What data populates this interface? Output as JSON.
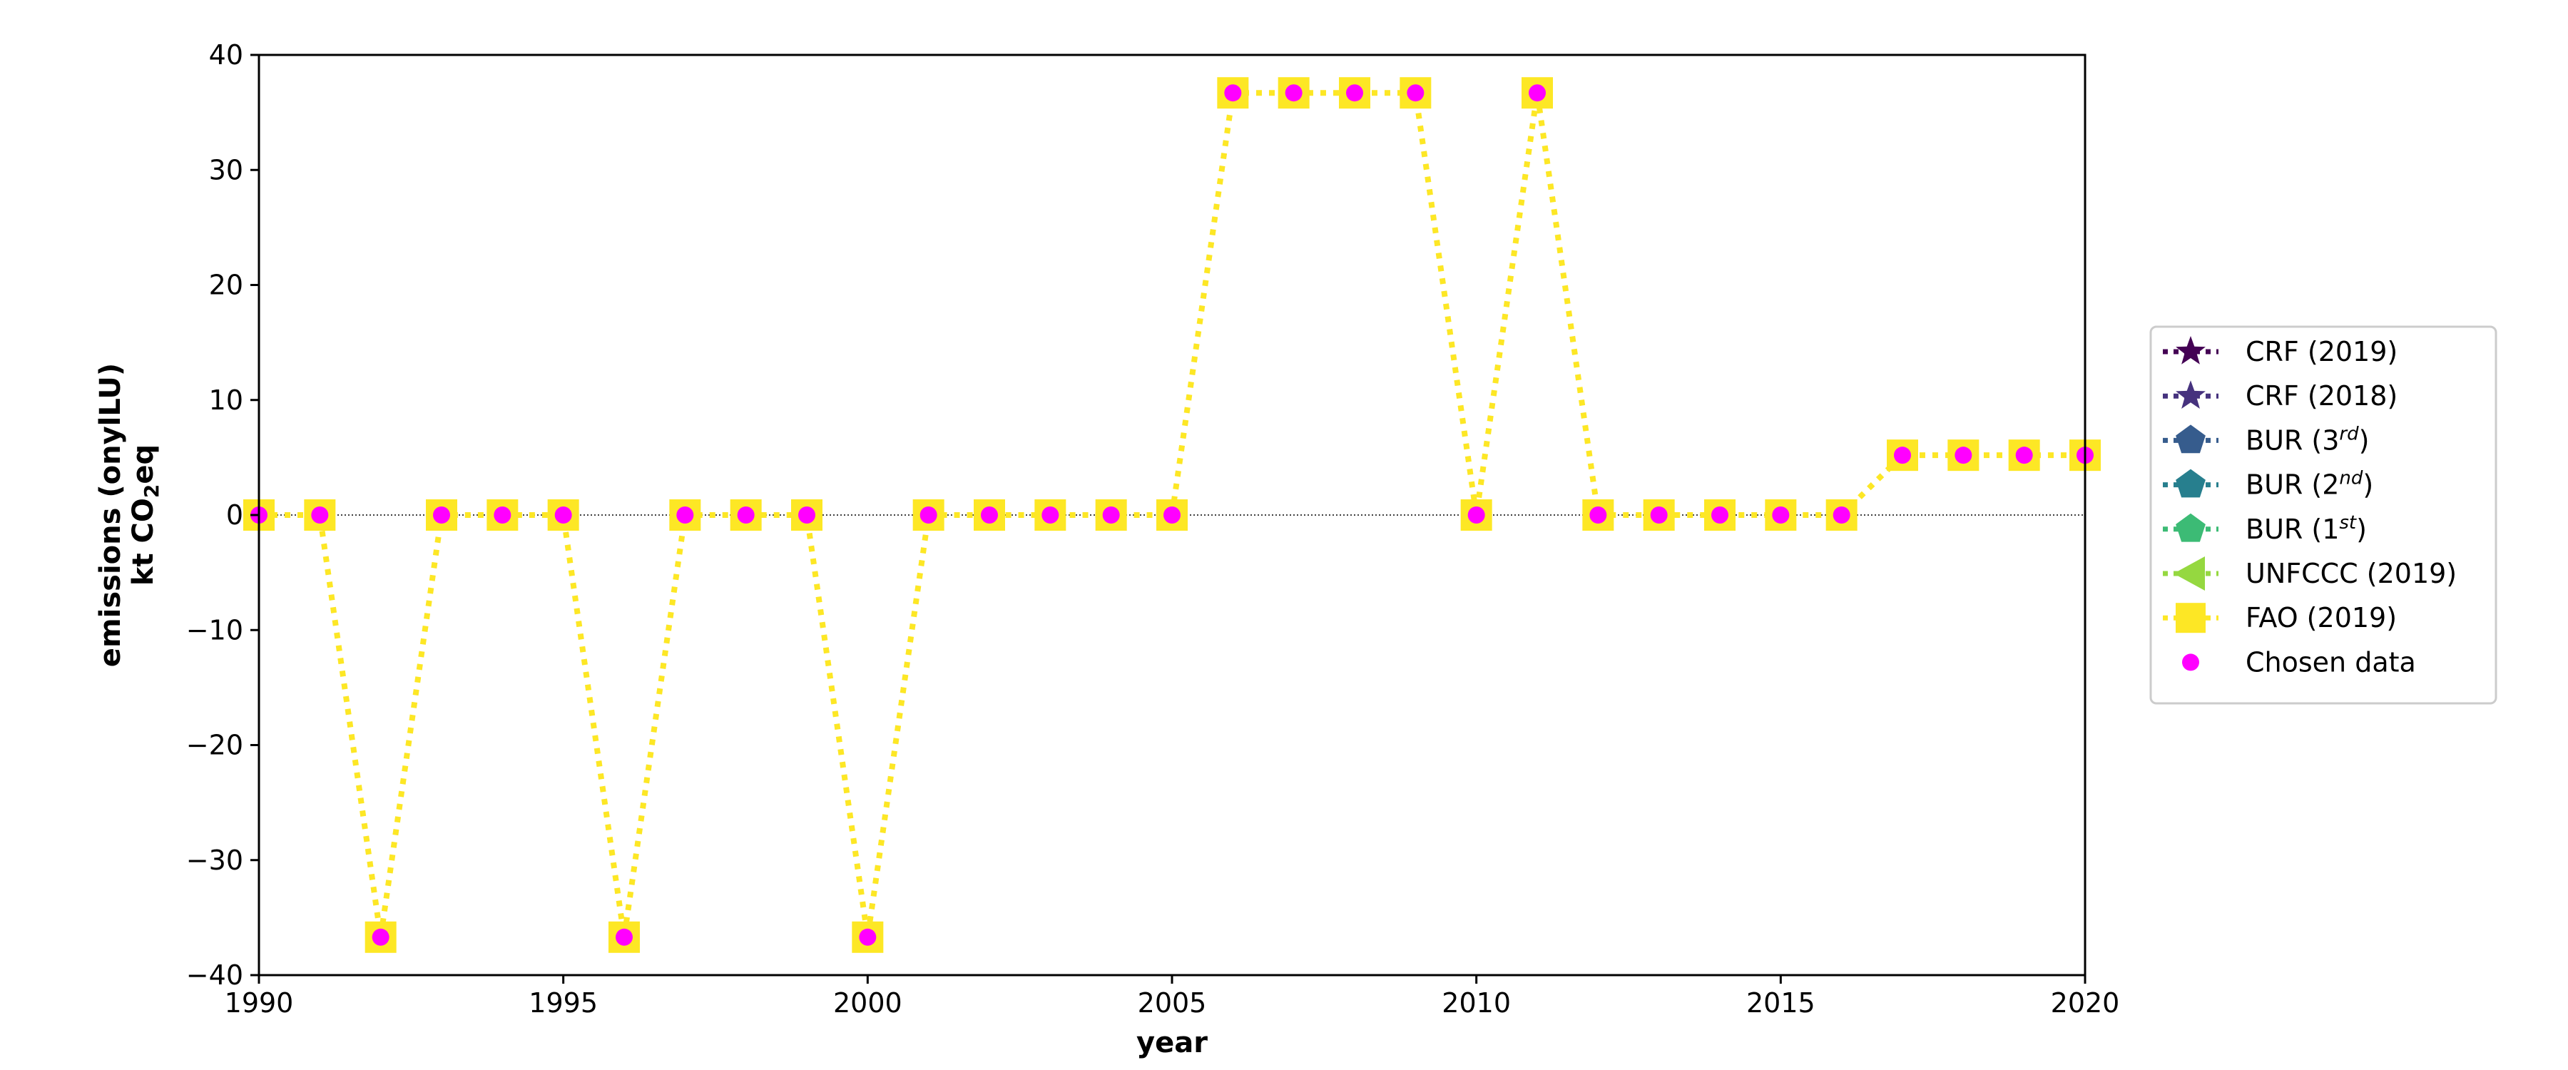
{
  "chart_data": {
    "type": "line",
    "xlabel": "year",
    "ylabel": "emissions (onylLU)",
    "ylabel_units": "kt CO",
    "ylabel_units_sub": "2",
    "ylabel_units_tail": "eq",
    "xlim": [
      1990,
      2020
    ],
    "ylim": [
      -40,
      40
    ],
    "xticks": [
      1990,
      1995,
      2000,
      2005,
      2010,
      2015,
      2020
    ],
    "yticks": [
      -40,
      -30,
      -20,
      -10,
      0,
      10,
      20,
      30,
      40
    ],
    "xtick_labels": [
      "1990",
      "1995",
      "2000",
      "2005",
      "2010",
      "2015",
      "2020"
    ],
    "ytick_labels": [
      "−40",
      "−30",
      "−20",
      "−10",
      "0",
      "10",
      "20",
      "30",
      "40"
    ],
    "legend_position": "right",
    "zero_line": true,
    "legend": [
      {
        "base": "CRF (2019)",
        "sup": "",
        "tail": "",
        "color": "#440154",
        "marker": "star",
        "line": "dotted"
      },
      {
        "base": "CRF (2018)",
        "sup": "",
        "tail": "",
        "color": "#46327e",
        "marker": "star",
        "line": "dotted"
      },
      {
        "base": "BUR (3",
        "sup": "rd",
        "tail": ")",
        "color": "#365c8d",
        "marker": "pentagon",
        "line": "dotted"
      },
      {
        "base": "BUR (2",
        "sup": "nd",
        "tail": ")",
        "color": "#277f8e",
        "marker": "pentagon",
        "line": "dotted"
      },
      {
        "base": "BUR (1",
        "sup": "st",
        "tail": ")",
        "color": "#3cbb75",
        "marker": "pentagon",
        "line": "dotted"
      },
      {
        "base": "UNFCCC (2019)",
        "sup": "",
        "tail": "",
        "color": "#95d840",
        "marker": "triangle-left",
        "line": "dotted"
      },
      {
        "base": "FAO (2019)",
        "sup": "",
        "tail": "",
        "color": "#fde725",
        "marker": "square",
        "line": "dotted"
      },
      {
        "base": "Chosen data",
        "sup": "",
        "tail": "",
        "color": "#ff00ff",
        "marker": "circle",
        "line": "none"
      }
    ],
    "series": [
      {
        "name": "FAO (2019)",
        "color": "#fde725",
        "x": [
          1990,
          1991,
          1992,
          1993,
          1994,
          1995,
          1996,
          1997,
          1998,
          1999,
          2000,
          2001,
          2002,
          2003,
          2004,
          2005,
          2006,
          2007,
          2008,
          2009,
          2010,
          2011,
          2012,
          2013,
          2014,
          2015,
          2016,
          2017,
          2018,
          2019,
          2020
        ],
        "y": [
          0,
          0,
          -36.7,
          0,
          0,
          0,
          -36.7,
          0,
          0,
          0,
          -36.7,
          0,
          0,
          0,
          0,
          0,
          36.7,
          36.7,
          36.7,
          36.7,
          0,
          36.7,
          0,
          0,
          0,
          0,
          0,
          5.2,
          5.2,
          5.2,
          5.2
        ]
      },
      {
        "name": "Chosen data",
        "color": "#ff00ff",
        "x": [
          1990,
          1991,
          1992,
          1993,
          1994,
          1995,
          1996,
          1997,
          1998,
          1999,
          2000,
          2001,
          2002,
          2003,
          2004,
          2005,
          2006,
          2007,
          2008,
          2009,
          2010,
          2011,
          2012,
          2013,
          2014,
          2015,
          2016,
          2017,
          2018,
          2019,
          2020
        ],
        "y": [
          0,
          0,
          -36.7,
          0,
          0,
          0,
          -36.7,
          0,
          0,
          0,
          -36.7,
          0,
          0,
          0,
          0,
          0,
          36.7,
          36.7,
          36.7,
          36.7,
          0,
          36.7,
          0,
          0,
          0,
          0,
          0,
          5.2,
          5.2,
          5.2,
          5.2
        ]
      }
    ]
  }
}
